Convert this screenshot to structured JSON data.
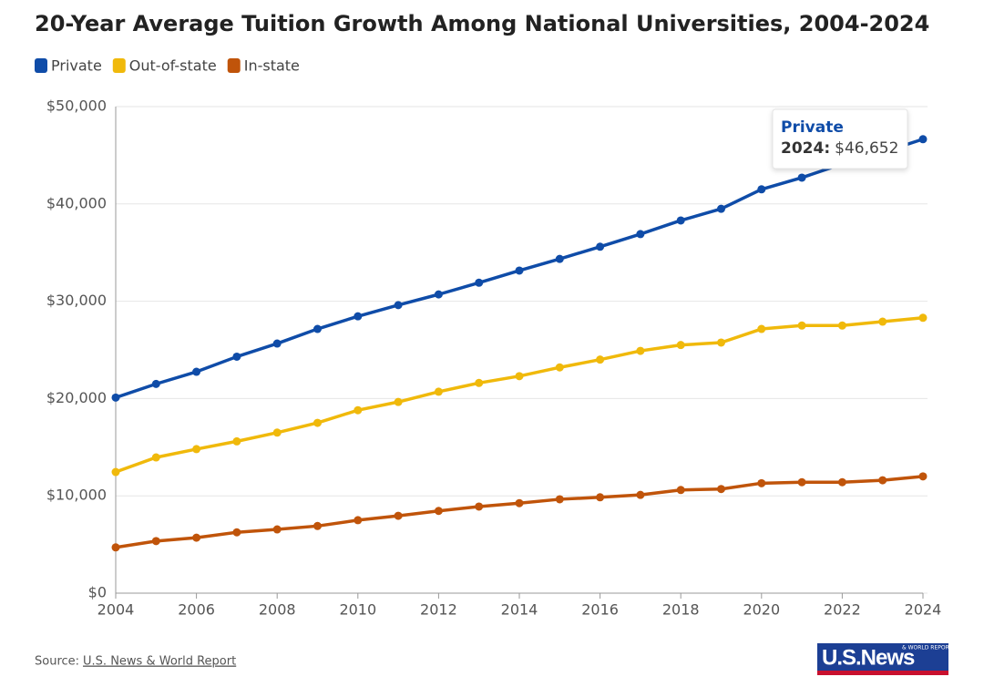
{
  "chart_data": {
    "type": "line",
    "title": "20-Year Average Tuition Growth Among National Universities, 2004-2024",
    "x": [
      2004,
      2005,
      2006,
      2007,
      2008,
      2009,
      2010,
      2011,
      2012,
      2013,
      2014,
      2015,
      2016,
      2017,
      2018,
      2019,
      2020,
      2021,
      2022,
      2023,
      2024
    ],
    "series": [
      {
        "name": "Private",
        "color": "#0f4ca8",
        "values": [
          20100,
          21500,
          22750,
          24300,
          25650,
          27150,
          28450,
          29600,
          30700,
          31900,
          33150,
          34350,
          35600,
          36900,
          38300,
          39500,
          41500,
          42700,
          44100,
          45300,
          46652
        ]
      },
      {
        "name": "Out-of-state",
        "color": "#f0b90b",
        "values": [
          12450,
          13950,
          14800,
          15600,
          16500,
          17500,
          18800,
          19650,
          20700,
          21600,
          22300,
          23200,
          24000,
          24900,
          25500,
          25750,
          27150,
          27500,
          27500,
          27900,
          28300
        ]
      },
      {
        "name": "In-state",
        "color": "#c0540a",
        "values": [
          4700,
          5350,
          5700,
          6250,
          6550,
          6900,
          7500,
          7950,
          8450,
          8900,
          9250,
          9650,
          9850,
          10100,
          10600,
          10700,
          11300,
          11400,
          11400,
          11600,
          12000
        ]
      }
    ],
    "xlim": [
      2004,
      2024
    ],
    "xticks": [
      2004,
      2006,
      2008,
      2010,
      2012,
      2014,
      2016,
      2018,
      2020,
      2022,
      2024
    ],
    "ylim": [
      0,
      50000
    ],
    "yticks": [
      {
        "value": 0,
        "label": "$0"
      },
      {
        "value": 10000,
        "label": "$10,000"
      },
      {
        "value": 20000,
        "label": "$20,000"
      },
      {
        "value": 30000,
        "label": "$30,000"
      },
      {
        "value": 40000,
        "label": "$40,000"
      },
      {
        "value": 50000,
        "label": "$50,000"
      }
    ],
    "grid": true,
    "legend": "top-left",
    "tooltip": {
      "label": "2024:",
      "value": 46652,
      "value_label": "$46,652"
    },
    "source_label": "Source:",
    "source": "U.S. News & World Report",
    "logo": {
      "text": "U.S.News",
      "subtext": "& WORLD REPORT"
    }
  }
}
